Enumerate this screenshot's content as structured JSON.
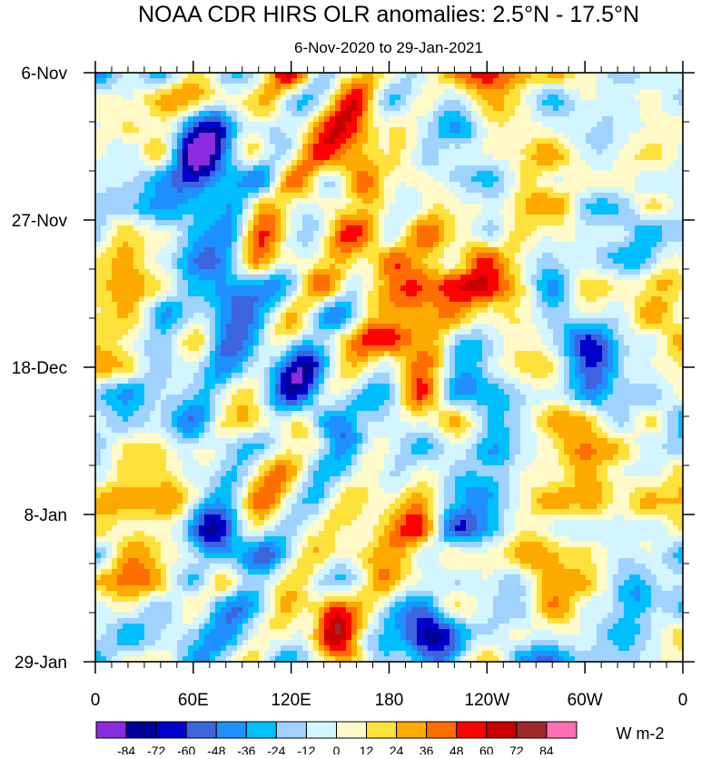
{
  "chart_data": {
    "type": "heatmap",
    "title": "NOAA CDR HIRS OLR anomalies: 2.5°N - 17.5°N",
    "subtitle": "6-Nov-2020 to 29-Jan-2021",
    "x_ticks": [
      {
        "label": "0",
        "lon": 0
      },
      {
        "label": "60E",
        "lon": 60
      },
      {
        "label": "120E",
        "lon": 120
      },
      {
        "label": "180",
        "lon": 180
      },
      {
        "label": "120W",
        "lon": 240
      },
      {
        "label": "60W",
        "lon": 300
      },
      {
        "label": "0",
        "lon": 360
      }
    ],
    "x_range": [
      0,
      360
    ],
    "y_ticks": [
      {
        "label": "6-Nov",
        "day": 0
      },
      {
        "label": "27-Nov",
        "day": 21
      },
      {
        "label": "18-Dec",
        "day": 42
      },
      {
        "label": "8-Jan",
        "day": 63
      },
      {
        "label": "29-Jan",
        "day": 84
      }
    ],
    "y_range_days": [
      0,
      84
    ],
    "colorbar": {
      "units": "W m-2",
      "levels": [
        "-84",
        "-72",
        "-60",
        "-48",
        "-36",
        "-24",
        "-12",
        "0",
        "12",
        "24",
        "36",
        "48",
        "60",
        "72",
        "84"
      ],
      "colors": [
        "#8a2be2",
        "#000096",
        "#0000cd",
        "#3c64dc",
        "#1e90ff",
        "#00bfff",
        "#a0d2ff",
        "#d2f5ff",
        "#fffac8",
        "#ffe13c",
        "#ffaa00",
        "#ff6e00",
        "#ff0000",
        "#c80000",
        "#a02828",
        "#ff6eb4"
      ]
    },
    "field_note_values": [
      -84,
      84
    ]
  }
}
